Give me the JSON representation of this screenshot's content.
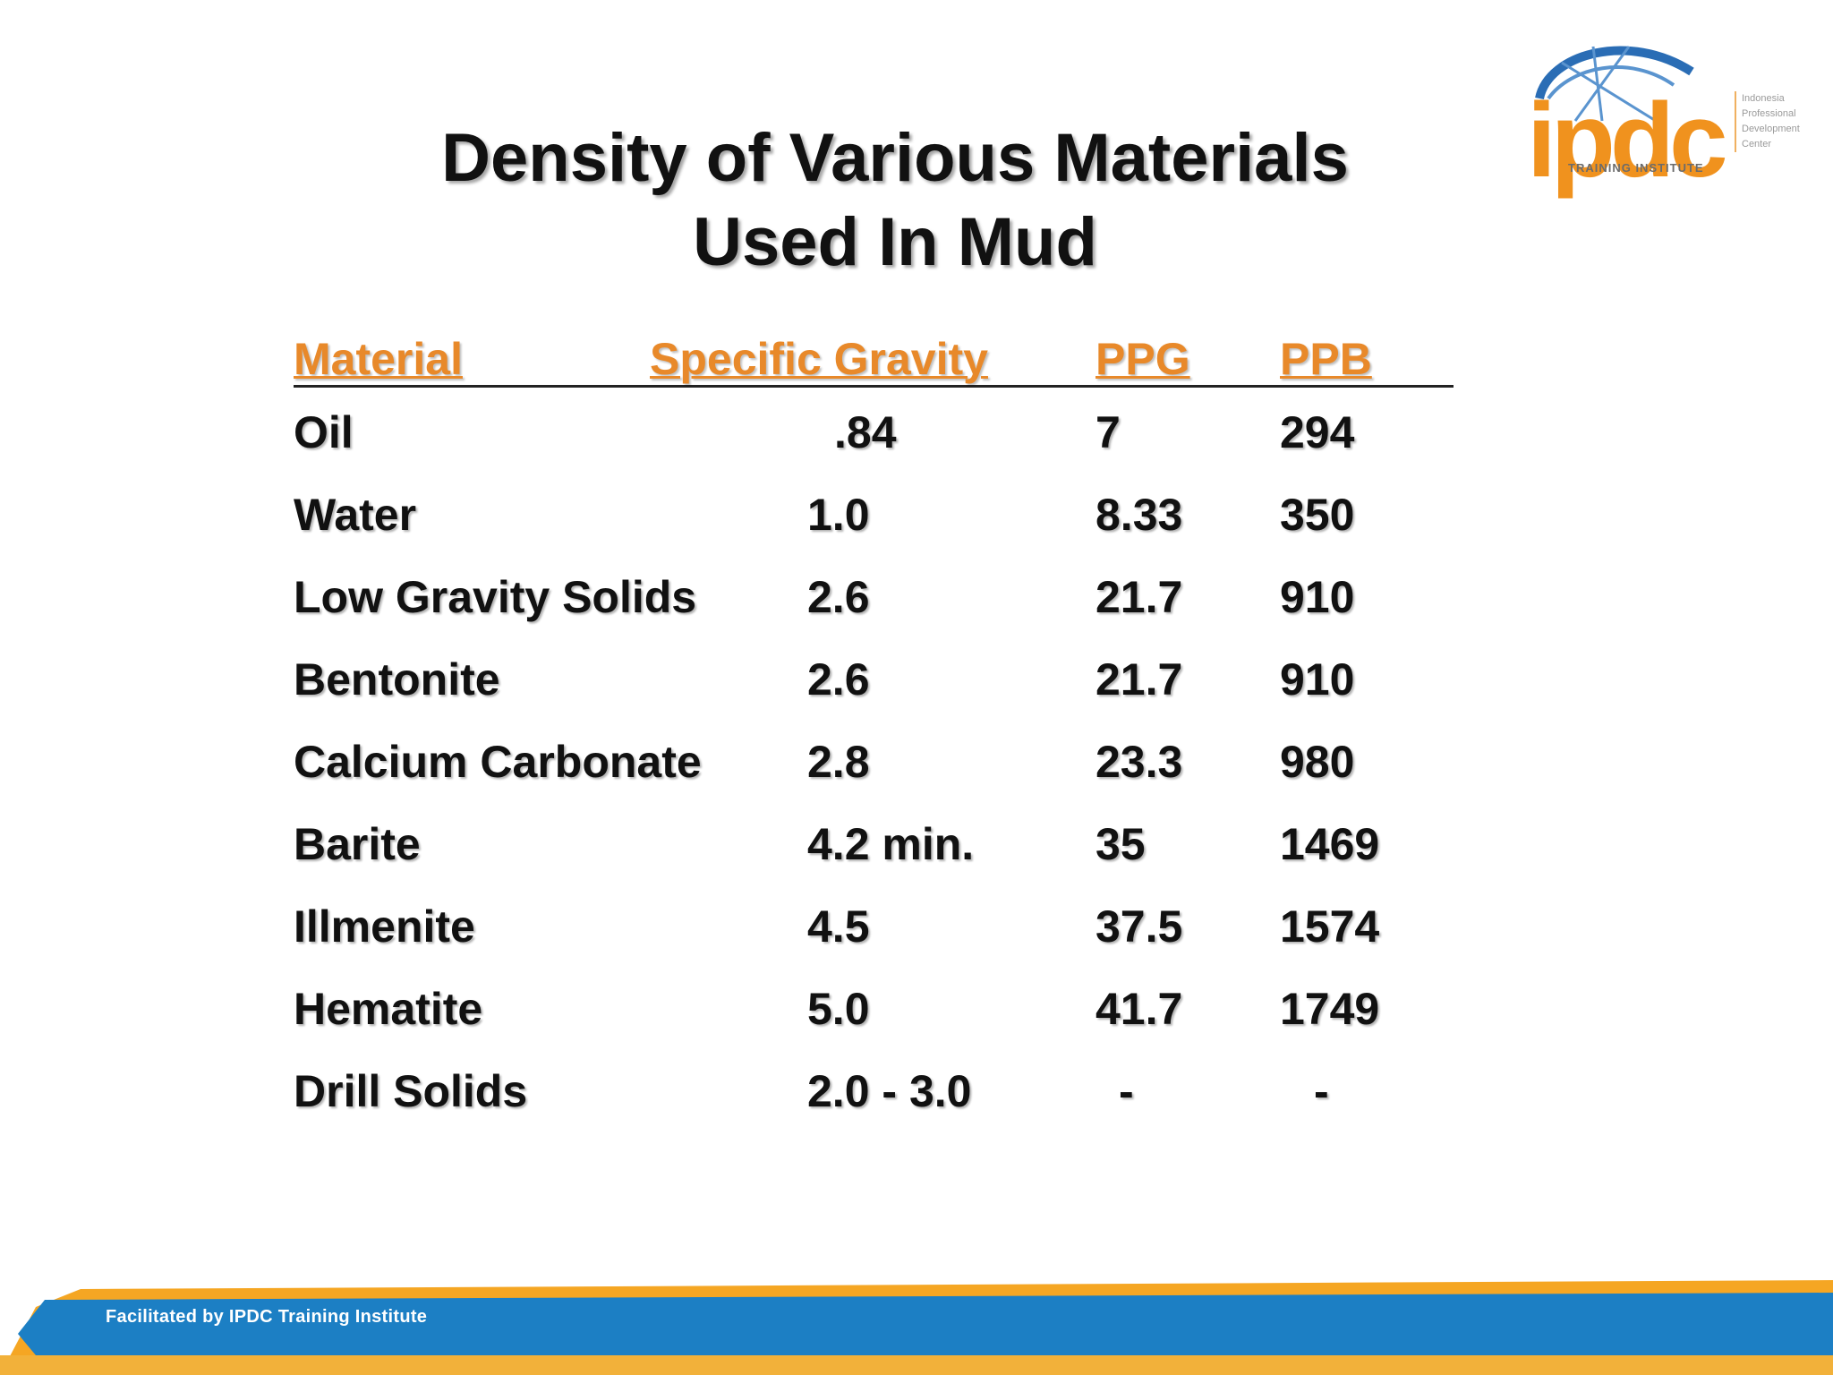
{
  "title": {
    "line1": "Density of Various Materials",
    "line2": "Used In Mud"
  },
  "logo": {
    "word": "ipdc",
    "tagline": "TRAINING INSTITUTE",
    "side_lines": [
      "Indonesia",
      "Professional",
      "Development",
      "Center"
    ]
  },
  "table": {
    "headers": [
      "Material",
      "Specific Gravity",
      "PPG",
      "PPB"
    ],
    "rows": [
      [
        "Oil",
        ".84",
        "7",
        "294"
      ],
      [
        "Water",
        "1.0",
        "8.33",
        "350"
      ],
      [
        "Low Gravity Solids",
        "2.6",
        "21.7",
        "910"
      ],
      [
        "Bentonite",
        "2.6",
        "21.7",
        "910"
      ],
      [
        "Calcium Carbonate",
        "2.8",
        "23.3",
        "980"
      ],
      [
        "Barite",
        "4.2 min.",
        "35",
        "1469"
      ],
      [
        "Illmenite",
        "4.5",
        "37.5",
        "1574"
      ],
      [
        "Hematite",
        "5.0",
        "41.7",
        "1749"
      ],
      [
        "Drill Solids",
        "2.0 - 3.0",
        "-",
        "-"
      ]
    ]
  },
  "footer": {
    "text": "Facilitated by IPDC Training Institute"
  },
  "colors": {
    "accent_orange": "#e8892a",
    "footer_blue": "#1c7fc4",
    "footer_orange": "#f5a623"
  }
}
